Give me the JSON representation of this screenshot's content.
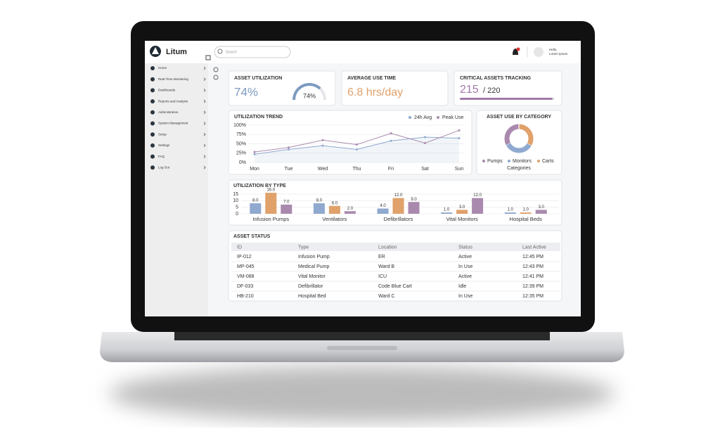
{
  "brand": "Litum",
  "search_placeholder": "Search",
  "user": {
    "greeting": "Hello,",
    "name": "Lorem Ipsum"
  },
  "sidebar": [
    "Home",
    "Real-Time Monitoring",
    "Dashboards",
    "Reports and Analysis",
    "Administration",
    "System Management",
    "Setup",
    "Settings",
    "FAQ",
    "Log Out"
  ],
  "asset_utilization": {
    "title": "ASSET UTILIZATION",
    "value": 74,
    "label": "74%",
    "color": "#7d9bc1"
  },
  "average_use_time": {
    "title": "AVERAGE USE TIME",
    "value": "6.8 hrs/day",
    "color": "#e0a16b"
  },
  "critical_assets": {
    "title": "CRITICAL ASSETS TRACKING",
    "value": 215,
    "total": {
      "value": 220,
      "label": "/ 220"
    },
    "color": "#a07aa7"
  },
  "utilization_trend": {
    "type": "line",
    "title": "UTILIZATION TREND",
    "categories": [
      "Mon",
      "Tue",
      "Wed",
      "Thu",
      "Fri",
      "Sat",
      "Sun"
    ],
    "ylim": [
      0,
      100
    ],
    "yticks": [
      {
        "value": 0,
        "label": "0%"
      },
      {
        "value": 25,
        "label": "25%"
      },
      {
        "value": 50,
        "label": "50%"
      },
      {
        "value": 75,
        "label": "75%"
      },
      {
        "value": 100,
        "label": "100%"
      }
    ],
    "series": [
      {
        "name": "24h Avg",
        "color": "#8fa9cf",
        "values": [
          22,
          35,
          45,
          35,
          58,
          68,
          65
        ]
      },
      {
        "name": "Peak Use",
        "color": "#a98aae",
        "values": [
          28,
          40,
          60,
          48,
          78,
          52,
          86
        ]
      }
    ]
  },
  "asset_use_by_category": {
    "type": "pie",
    "title": "ASSET USE BY CATEGORY",
    "xlabel": "Categories",
    "categories": [
      "Pumps",
      "Monitors",
      "Carts"
    ],
    "values": [
      33,
      34,
      33
    ],
    "colors": [
      "#a98aae",
      "#8fa9cf",
      "#e0a16b"
    ]
  },
  "utilization_by_type": {
    "type": "bar",
    "title": "UTILIZATION BY TYPE",
    "categories": [
      "Infusion Pumps",
      "Ventilators",
      "Defibrillators",
      "Vital Monitors",
      "Hospital Beds"
    ],
    "ylim": [
      0,
      15
    ],
    "yticks": [
      0,
      5,
      10,
      15
    ],
    "series": [
      {
        "color": "#8fa9cf",
        "values": [
          8,
          8,
          4,
          1,
          1
        ],
        "value_labels": [
          "8.0",
          "8.0",
          "4.0",
          "1.0",
          "1.0"
        ]
      },
      {
        "color": "#e0a16b",
        "values": [
          16,
          6,
          12,
          3,
          1
        ],
        "value_labels": [
          "16.0",
          "6.0",
          "12.0",
          "3.0",
          "1.0"
        ]
      },
      {
        "color": "#a98aae",
        "values": [
          7,
          2,
          9,
          12,
          3
        ],
        "value_labels": [
          "7.0",
          "2.0",
          "9.0",
          "12.0",
          "3.0"
        ]
      }
    ]
  },
  "asset_status": {
    "title": "ASSET STATUS",
    "columns": [
      "ID",
      "Type",
      "Location",
      "Status",
      "Last Active"
    ],
    "rows": [
      [
        "IP-012",
        "Infusion Pump",
        "ER",
        "Active",
        "12:45 PM"
      ],
      [
        "MP-045",
        "Medical Pump",
        "Ward B",
        "In Use",
        "12:43 PM"
      ],
      [
        "VM-088",
        "Vital Monitor",
        "ICU",
        "Active",
        "12:41 PM"
      ],
      [
        "DF-033",
        "Defibrillator",
        "Code Blue Cart",
        "Idle",
        "12:39 PM"
      ],
      [
        "HB-210",
        "Hospital Bed",
        "Ward C",
        "In Use",
        "12:35 PM"
      ]
    ]
  }
}
